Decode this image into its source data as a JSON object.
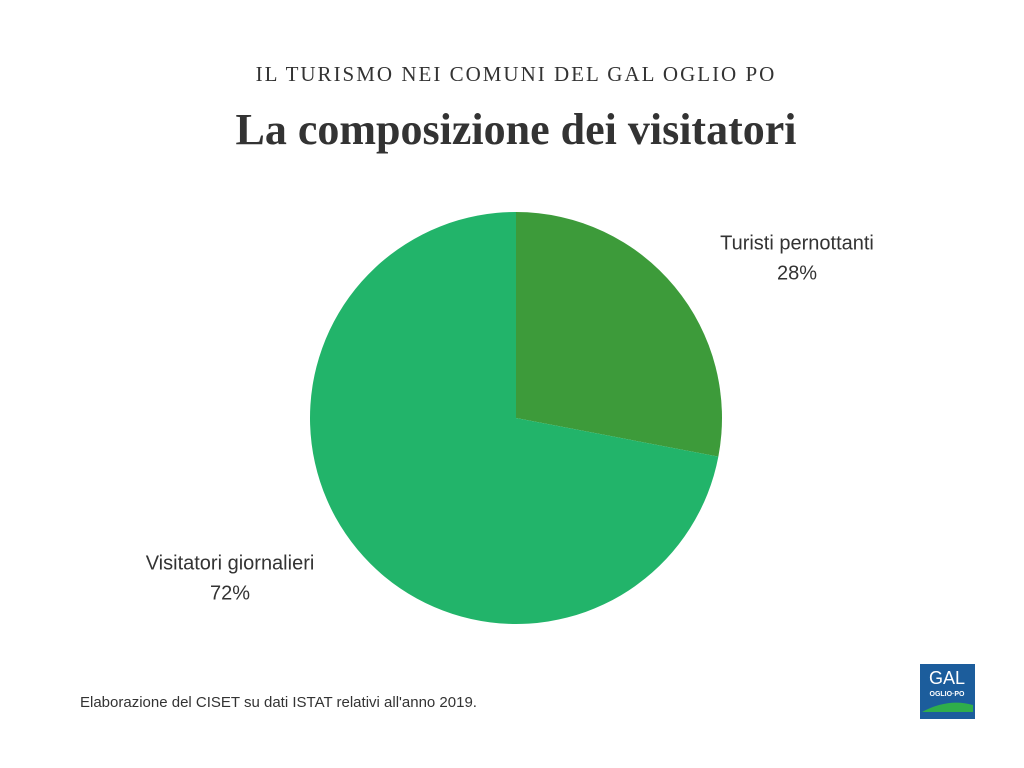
{
  "chart_data": {
    "type": "pie",
    "supertitle": "IL TURISMO NEI COMUNI DEL GAL OGLIO PO",
    "title": "La composizione dei visitatori",
    "categories": [
      "Turisti pernottanti",
      "Visitatori giornalieri"
    ],
    "values": [
      28,
      72
    ],
    "value_labels": [
      "28%",
      "72%"
    ],
    "colors": [
      "#3d9b3a",
      "#22b46a"
    ],
    "note": "Elaborazione del CISET su dati ISTAT relativi all'anno 2019."
  },
  "logo": {
    "title": "GAL",
    "subtitle": "OGLIO·PO"
  }
}
